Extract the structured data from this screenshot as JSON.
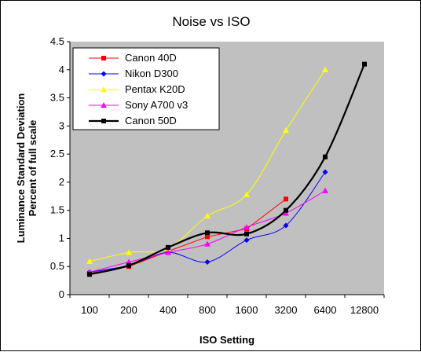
{
  "chart_data": {
    "type": "line",
    "title": "Noise vs ISO",
    "xlabel": "ISO Setting",
    "ylabel_lines": [
      "Luminance Standard Deviation",
      "Percent of full scale"
    ],
    "categories": [
      "100",
      "200",
      "400",
      "800",
      "1600",
      "3200",
      "6400",
      "12800"
    ],
    "ylim": [
      0,
      4.5
    ],
    "yticks": [
      "0",
      "0.5",
      "1",
      "1.5",
      "2",
      "2.5",
      "3",
      "3.5",
      "4",
      "4.5"
    ],
    "grid": false,
    "legend_position": "top-left",
    "plot_background": "#c0c0c0",
    "series": [
      {
        "name": "Canon 40D",
        "color": "#ff0000",
        "marker": "square",
        "smooth": false,
        "values": [
          0.38,
          0.5,
          0.77,
          1.03,
          1.17,
          1.7,
          null,
          null
        ]
      },
      {
        "name": "Nikon D300",
        "color": "#0000ff",
        "marker": "diamond",
        "smooth": true,
        "values": [
          0.4,
          0.52,
          0.75,
          0.58,
          0.97,
          1.23,
          2.18,
          null
        ]
      },
      {
        "name": "Pentax K20D",
        "color": "#ffff00",
        "marker": "triangle",
        "smooth": true,
        "values": [
          0.59,
          0.75,
          0.82,
          1.4,
          1.78,
          2.92,
          4.0,
          null
        ]
      },
      {
        "name": "Sony A700 v3",
        "color": "#ff00ff",
        "marker": "triangle",
        "smooth": true,
        "values": [
          0.4,
          0.58,
          0.75,
          0.9,
          1.2,
          1.45,
          1.85,
          null
        ]
      },
      {
        "name": "Canon 50D",
        "color": "#000000",
        "marker": "square",
        "smooth": true,
        "bold": true,
        "values": [
          0.36,
          0.52,
          0.84,
          1.1,
          1.08,
          1.5,
          2.45,
          4.1
        ]
      }
    ]
  }
}
